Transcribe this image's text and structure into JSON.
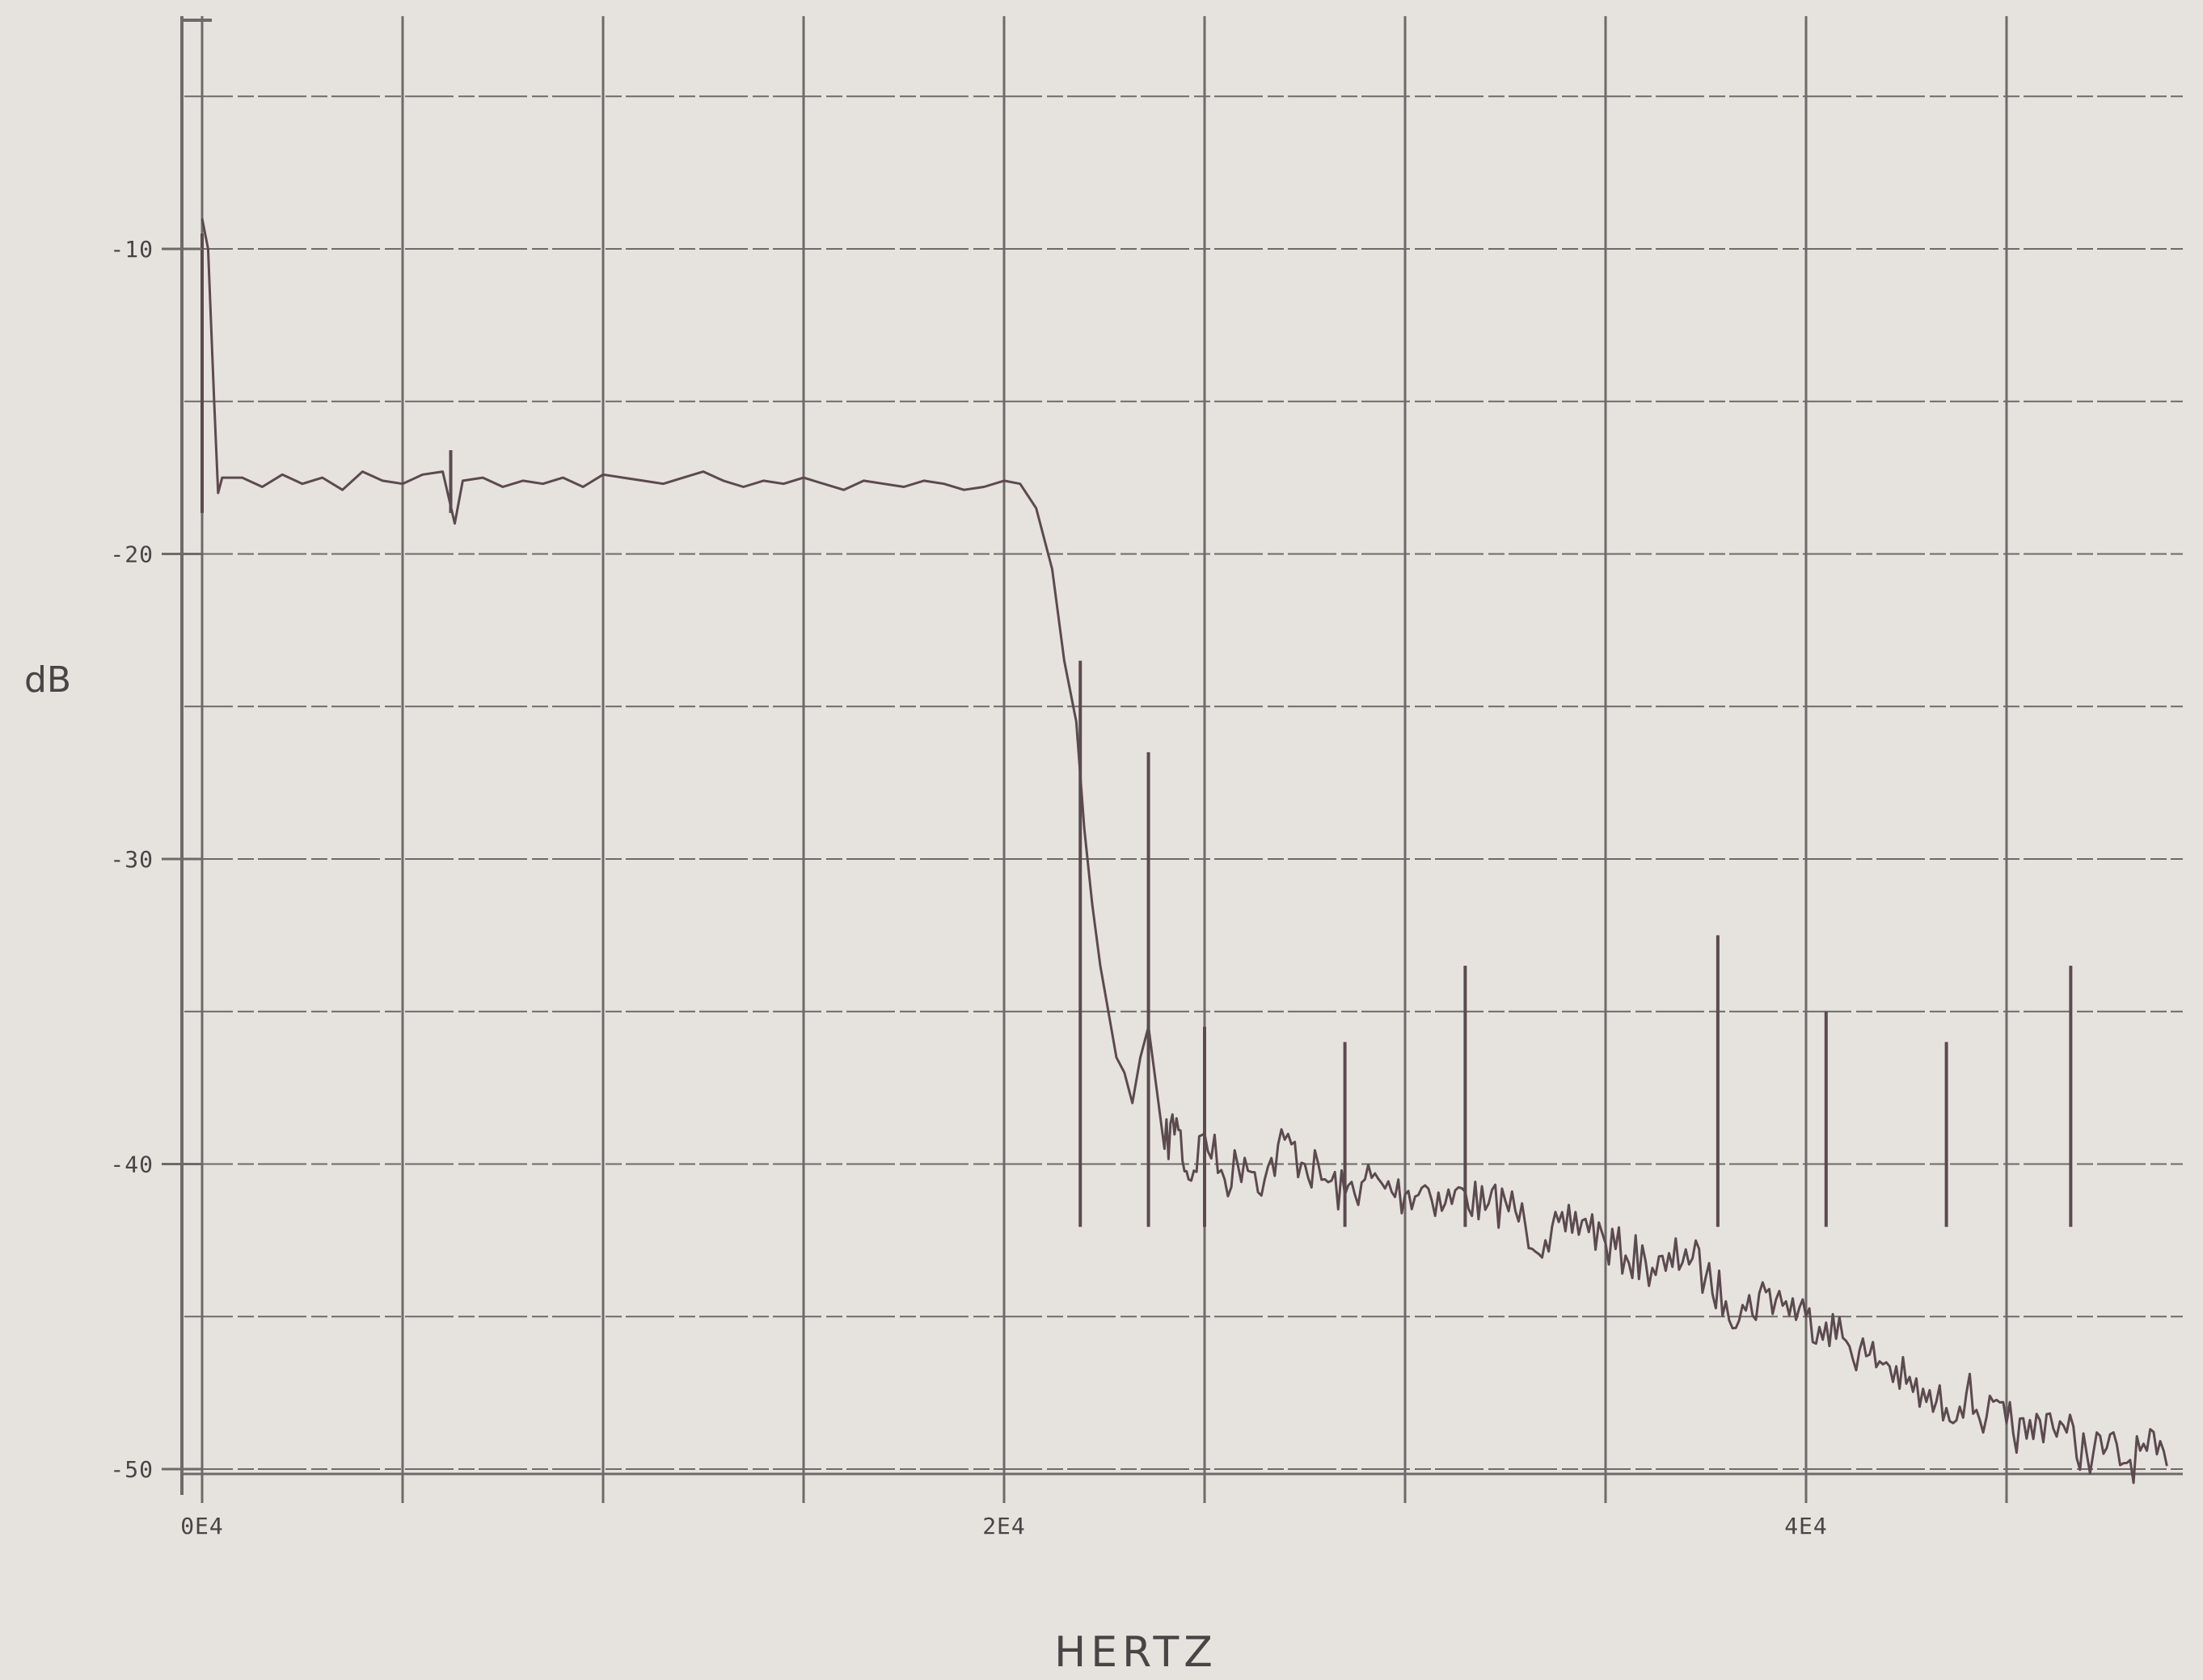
{
  "chart_data": {
    "type": "line",
    "title": "",
    "xlabel": "HERTZ",
    "ylabel": "dB",
    "x_tick_labels": [
      "0E4",
      "2E4",
      "4E4"
    ],
    "x_ticks": [
      0,
      20000,
      40000
    ],
    "y_tick_labels": [
      "-10",
      "-20",
      "-30",
      "-40",
      "-50"
    ],
    "y_ticks": [
      -10,
      -20,
      -30,
      -40,
      -50
    ],
    "xlim": [
      -500,
      49000
    ],
    "ylim": [
      -51,
      -2
    ],
    "x_grid_step": 5000,
    "y_grid_step": 5,
    "grid": true,
    "legend": "none",
    "colors": {
      "line": "#5b4a4f",
      "grid": "#6f6a6a",
      "background": "#e6e3df",
      "text": "#4a4446"
    },
    "series": [
      {
        "x": [
          0,
          150,
          300,
          400,
          500,
          1000,
          1500,
          2000,
          2500,
          3000,
          3500,
          4000,
          4500,
          5000,
          5500,
          6000,
          6300,
          6500,
          7000,
          7500,
          8000,
          8500,
          9000,
          9500,
          10000,
          10500,
          11000,
          11500,
          12000,
          12500,
          13000,
          13500,
          14000,
          14500,
          15000,
          15500,
          16000,
          16500,
          17000,
          17500,
          18000,
          18500,
          19000,
          19500,
          20000,
          20400,
          20800,
          21200,
          21500,
          21800,
          22000,
          22200,
          22400,
          22600,
          22800,
          23000,
          23200,
          23400,
          23600,
          23800,
          24000,
          24300,
          24600,
          25000,
          25500,
          26000,
          26500,
          27000,
          27500,
          28000,
          28500,
          29000,
          29500,
          30000,
          30500,
          31000,
          31500,
          32000,
          32500,
          33000,
          33500,
          34000,
          34500,
          35000,
          35500,
          36000,
          36500,
          37000,
          37500,
          38000,
          38500,
          39000,
          39500,
          40000,
          40500,
          41000,
          41500,
          42000,
          42500,
          43000,
          43500,
          44000,
          44500,
          45000,
          45500,
          46000,
          46500,
          47000,
          47500,
          48000,
          48500,
          49000
        ],
        "y": [
          -9,
          -10,
          -15,
          -18,
          -17.5,
          -17.5,
          -17.8,
          -17.4,
          -17.7,
          -17.5,
          -17.9,
          -17.3,
          -17.6,
          -17.7,
          -17.4,
          -17.3,
          -19,
          -17.6,
          -17.5,
          -17.8,
          -17.6,
          -17.7,
          -17.5,
          -17.8,
          -17.4,
          -17.5,
          -17.6,
          -17.7,
          -17.5,
          -17.3,
          -17.6,
          -17.8,
          -17.6,
          -17.7,
          -17.5,
          -17.7,
          -17.9,
          -17.6,
          -17.7,
          -17.8,
          -17.6,
          -17.7,
          -17.9,
          -17.8,
          -17.6,
          -17.7,
          -18.5,
          -20.5,
          -23.5,
          -25.5,
          -29,
          -31.5,
          -33.5,
          -35,
          -36.5,
          -37,
          -38,
          -36.5,
          -35.5,
          -37.5,
          -39.5,
          -38.5,
          -40.5,
          -39,
          -40.5,
          -39.8,
          -40.5,
          -39.2,
          -40,
          -40.5,
          -41,
          -40.5,
          -40.8,
          -41,
          -40.7,
          -41.3,
          -40.9,
          -41.5,
          -41.2,
          -42,
          -42.5,
          -42.2,
          -41.8,
          -42.6,
          -43,
          -43.2,
          -43.5,
          -42.8,
          -43.7,
          -44.5,
          -44.8,
          -44.2,
          -44.5,
          -45,
          -45.2,
          -45.8,
          -46.3,
          -46.5,
          -47.2,
          -47.8,
          -48,
          -47.5,
          -48.3,
          -48.5,
          -49,
          -48.2,
          -48.8,
          -49.5,
          -49.3,
          -49.8,
          -49.4,
          -49.9
        ]
      }
    ],
    "spikes": [
      {
        "x": 0,
        "y": -9.5
      },
      {
        "x": 6200,
        "y": -16.6
      },
      {
        "x": 21900,
        "y": -23.5
      },
      {
        "x": 23600,
        "y": -26.5
      },
      {
        "x": 25000,
        "y": -35.5
      },
      {
        "x": 28500,
        "y": -36
      },
      {
        "x": 31500,
        "y": -33.5
      },
      {
        "x": 37800,
        "y": -32.5
      },
      {
        "x": 40500,
        "y": -35
      },
      {
        "x": 43500,
        "y": -36
      },
      {
        "x": 46600,
        "y": -33.5
      }
    ]
  }
}
